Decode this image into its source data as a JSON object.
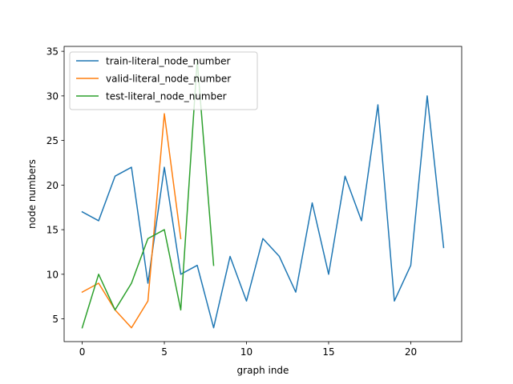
{
  "chart_data": {
    "type": "line",
    "title": "",
    "xlabel": "graph inde",
    "ylabel": "node numbers",
    "xlim": [
      -1.1,
      23.1
    ],
    "ylim": [
      2.45,
      35.55
    ],
    "xticks": [
      0,
      5,
      10,
      15,
      20
    ],
    "yticks": [
      5,
      10,
      15,
      20,
      25,
      30,
      35
    ],
    "grid": false,
    "legend_position": "top-left",
    "series": [
      {
        "name": "train-literal_node_number",
        "color": "#1f77b4",
        "x": [
          0,
          1,
          2,
          3,
          4,
          5,
          6,
          7,
          8,
          9,
          10,
          11,
          12,
          13,
          14,
          15,
          16,
          17,
          18,
          19,
          20,
          21,
          22
        ],
        "y": [
          17,
          16,
          21,
          22,
          9,
          22,
          10,
          11,
          4,
          12,
          7,
          14,
          12,
          8,
          18,
          10,
          21,
          16,
          29,
          7,
          11,
          30,
          13
        ]
      },
      {
        "name": "valid-literal_node_number",
        "color": "#ff7f0e",
        "x": [
          0,
          1,
          2,
          3,
          4,
          5,
          6
        ],
        "y": [
          8,
          9,
          6,
          4,
          7,
          28,
          14
        ]
      },
      {
        "name": "test-literal_node_number",
        "color": "#2ca02c",
        "x": [
          0,
          1,
          2,
          3,
          4,
          5,
          6,
          7,
          8
        ],
        "y": [
          4,
          10,
          6,
          9,
          14,
          15,
          6,
          34,
          11
        ]
      }
    ]
  }
}
